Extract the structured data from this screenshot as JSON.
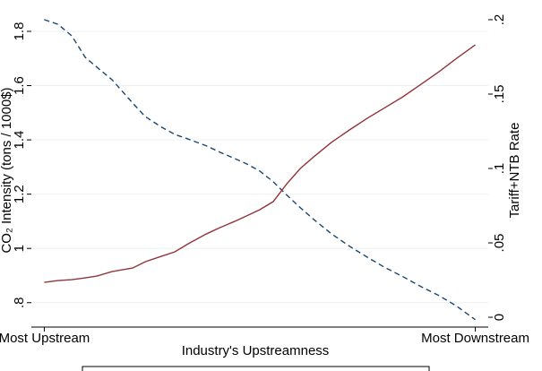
{
  "chart_data": {
    "type": "line",
    "ylabel": "CO₂ Intensity (tons / 1000$)",
    "y2label": "Tariff+NTB Rate",
    "xlabel": "Industry's Upstreamness",
    "x": [
      0,
      0.032,
      0.064,
      0.095,
      0.122,
      0.157,
      0.205,
      0.234,
      0.272,
      0.303,
      0.334,
      0.376,
      0.407,
      0.442,
      0.469,
      0.5,
      0.531,
      0.563,
      0.594,
      0.625,
      0.666,
      0.708,
      0.749,
      0.791,
      0.832,
      0.874,
      0.916,
      0.957,
      1
    ],
    "series": [
      {
        "color": "#1a476f",
        "dash": true,
        "values": [
          1.843,
          1.826,
          1.783,
          1.704,
          1.668,
          1.622,
          1.536,
          1.486,
          1.447,
          1.42,
          1.403,
          1.378,
          1.355,
          1.331,
          1.312,
          1.285,
          1.246,
          1.196,
          1.15,
          1.107,
          1.054,
          1.008,
          0.968,
          0.929,
          0.896,
          0.859,
          0.826,
          0.787,
          0.737
        ]
      },
      {
        "color": "#90353b",
        "axis": "y2",
        "values": [
          0.0235,
          0.0247,
          0.0253,
          0.0265,
          0.0277,
          0.0307,
          0.0331,
          0.0373,
          0.041,
          0.044,
          0.0494,
          0.056,
          0.0602,
          0.0645,
          0.0681,
          0.0723,
          0.0777,
          0.0898,
          0.1,
          0.1078,
          0.1175,
          0.1259,
          0.1337,
          0.141,
          0.1482,
          0.1566,
          0.1651,
          0.1741,
          0.1831
        ]
      }
    ],
    "xlim": [
      -0.03,
      1.03
    ],
    "xticks": [
      {
        "value": 0,
        "label": "Most Upstream"
      },
      {
        "value": 1,
        "label": "Most Downstream"
      }
    ],
    "ylim": [
      0.71,
      1.866
    ],
    "yticks": [
      {
        "value": 0.8,
        "label": ".8"
      },
      1,
      1.2,
      1.4,
      1.6,
      1.8
    ],
    "y2lim": [
      -0.0066,
      0.2042
    ],
    "y2ticks": [
      0,
      {
        "value": 0.05,
        "label": ".05"
      },
      {
        "value": 0.1,
        "label": ".1"
      },
      {
        "value": 0.15,
        "label": ".15"
      },
      {
        "value": 0.2,
        "label": ".2"
      }
    ],
    "grid": true
  }
}
